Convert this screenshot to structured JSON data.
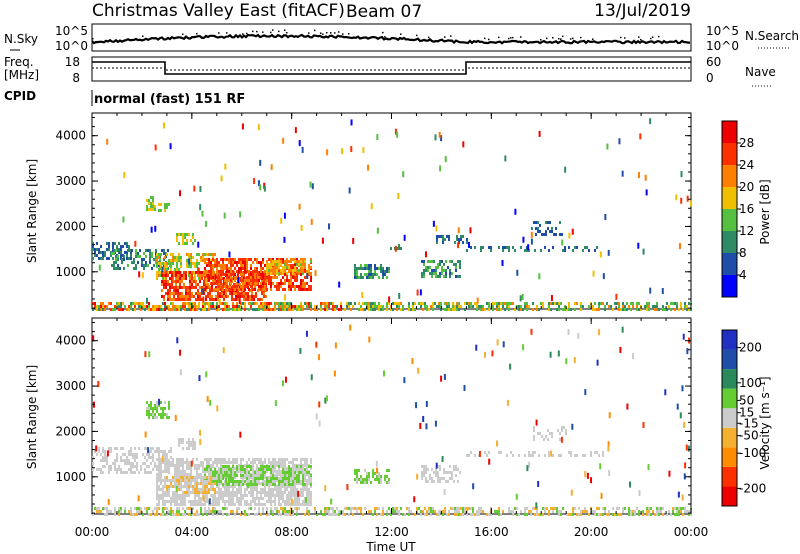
{
  "header": {
    "station": "Christmas Valley East (fitACF)",
    "beam": "Beam 07",
    "date": "13/Jul/2019"
  },
  "noise_panel": {
    "left_label": "N.Sky",
    "left_ticks": [
      "10^5",
      "10^0"
    ],
    "right_ticks": [
      "10^5",
      "10^0"
    ],
    "right_label": "N.Search"
  },
  "freq_panel": {
    "left_label_1": "Freq.",
    "left_label_2": "[MHz]",
    "left_ticks": [
      "18",
      "8"
    ],
    "right_ticks": [
      "60",
      "0"
    ],
    "right_label": "Nave"
  },
  "cpid": {
    "label": "CPID",
    "program": "normal (fast) 151 RF"
  },
  "colors": {
    "power_scale": [
      "#0000ff",
      "#1f4ea8",
      "#2f8a66",
      "#55c040",
      "#f0c000",
      "#ff7f00",
      "#ff3000",
      "#ee0000"
    ],
    "velocity_scale": [
      "#ee0000",
      "#ff3000",
      "#ff8c00",
      "#f4b030",
      "#cccccc",
      "#66cc33",
      "#2a8a5a",
      "#1f4ea8",
      "#2030c0"
    ]
  },
  "chart_data": [
    {
      "type": "heatmap",
      "name": "power",
      "ylabel": "Slant Range [km]",
      "yticks": [
        1000,
        2000,
        3000,
        4000
      ],
      "ylim": [
        180,
        4500
      ],
      "xlim": [
        0,
        24
      ],
      "colorbar": {
        "label": "Power [dB]",
        "ticks": [
          4,
          8,
          12,
          16,
          20,
          24,
          28
        ],
        "range": [
          0,
          32
        ]
      },
      "regions": [
        {
          "t0": 0.0,
          "t1": 24.0,
          "r0": 180,
          "r1": 330,
          "v0": 8,
          "v1": 22,
          "d": 0.55
        },
        {
          "t0": 0.0,
          "t1": 10.0,
          "r0": 180,
          "r1": 330,
          "v0": 18,
          "v1": 30,
          "d": 0.35
        },
        {
          "t0": 0.0,
          "t1": 1.6,
          "r0": 1300,
          "r1": 1650,
          "v0": 4,
          "v1": 12,
          "d": 0.55
        },
        {
          "t0": 0.8,
          "t1": 3.2,
          "r0": 1050,
          "r1": 1500,
          "v0": 6,
          "v1": 14,
          "d": 0.45
        },
        {
          "t0": 2.6,
          "t1": 5.0,
          "r0": 850,
          "r1": 1400,
          "v0": 12,
          "v1": 22,
          "d": 0.55
        },
        {
          "t0": 2.8,
          "t1": 7.0,
          "r0": 350,
          "r1": 1000,
          "v0": 20,
          "v1": 30,
          "d": 0.75
        },
        {
          "t0": 4.5,
          "t1": 8.8,
          "r0": 600,
          "r1": 1300,
          "v0": 20,
          "v1": 30,
          "d": 0.7
        },
        {
          "t0": 7.0,
          "t1": 8.8,
          "r0": 950,
          "r1": 1250,
          "v0": 14,
          "v1": 24,
          "d": 0.6
        },
        {
          "t0": 2.2,
          "t1": 2.6,
          "r0": 2350,
          "r1": 2650,
          "v0": 12,
          "v1": 18,
          "d": 0.5
        },
        {
          "t0": 2.6,
          "t1": 3.1,
          "r0": 2300,
          "r1": 2500,
          "v0": 12,
          "v1": 18,
          "d": 0.5
        },
        {
          "t0": 3.4,
          "t1": 4.2,
          "r0": 1600,
          "r1": 1850,
          "v0": 12,
          "v1": 20,
          "d": 0.5
        },
        {
          "t0": 10.5,
          "t1": 11.9,
          "r0": 850,
          "r1": 1150,
          "v0": 4,
          "v1": 14,
          "d": 0.55
        },
        {
          "t0": 11.8,
          "t1": 12.5,
          "r0": 1500,
          "r1": 1600,
          "v0": 8,
          "v1": 12,
          "d": 0.4
        },
        {
          "t0": 13.2,
          "t1": 14.8,
          "r0": 850,
          "r1": 1250,
          "v0": 6,
          "v1": 16,
          "d": 0.55
        },
        {
          "t0": 13.8,
          "t1": 15.2,
          "r0": 1600,
          "r1": 1800,
          "v0": 4,
          "v1": 10,
          "d": 0.4
        },
        {
          "t0": 15.0,
          "t1": 20.5,
          "r0": 1450,
          "r1": 1560,
          "v0": 6,
          "v1": 12,
          "d": 0.3
        },
        {
          "t0": 17.6,
          "t1": 19.0,
          "r0": 1800,
          "r1": 2100,
          "v0": 4,
          "v1": 10,
          "d": 0.3
        }
      ]
    },
    {
      "type": "heatmap",
      "name": "velocity",
      "ylabel": "Slant Range [km]",
      "xlabel": "Time UT",
      "yticks": [
        1000,
        2000,
        3000,
        4000
      ],
      "ylim": [
        180,
        4500
      ],
      "xlim": [
        0,
        24
      ],
      "xticks": [
        "00:00",
        "04:00",
        "08:00",
        "12:00",
        "16:00",
        "20:00",
        "00:00"
      ],
      "colorbar": {
        "label": "Velocity [m s⁻¹]",
        "ticks": [
          -200,
          -100,
          -50,
          -15,
          15,
          50,
          100,
          200
        ],
        "range": [
          -250,
          250
        ]
      },
      "regions": [
        {
          "t0": 0.0,
          "t1": 24.0,
          "r0": 180,
          "r1": 330,
          "v0": -60,
          "v1": 60,
          "d": 0.55
        },
        {
          "t0": 0.0,
          "t1": 3.2,
          "r0": 1050,
          "r1": 1650,
          "v0": -12,
          "v1": 12,
          "d": 0.5
        },
        {
          "t0": 2.6,
          "t1": 8.8,
          "r0": 400,
          "r1": 1400,
          "v0": -12,
          "v1": 12,
          "d": 0.75
        },
        {
          "t0": 4.5,
          "t1": 8.8,
          "r0": 800,
          "r1": 1250,
          "v0": 20,
          "v1": 60,
          "d": 0.55
        },
        {
          "t0": 3.0,
          "t1": 5.0,
          "r0": 600,
          "r1": 1000,
          "v0": -60,
          "v1": -20,
          "d": 0.35
        },
        {
          "t0": 2.2,
          "t1": 3.1,
          "r0": 2300,
          "r1": 2650,
          "v0": 20,
          "v1": 60,
          "d": 0.5
        },
        {
          "t0": 3.4,
          "t1": 4.2,
          "r0": 1600,
          "r1": 1850,
          "v0": -12,
          "v1": 12,
          "d": 0.5
        },
        {
          "t0": 10.5,
          "t1": 11.9,
          "r0": 850,
          "r1": 1150,
          "v0": 20,
          "v1": 60,
          "d": 0.6
        },
        {
          "t0": 13.2,
          "t1": 14.8,
          "r0": 850,
          "r1": 1250,
          "v0": -12,
          "v1": 12,
          "d": 0.5
        },
        {
          "t0": 15.0,
          "t1": 20.5,
          "r0": 1450,
          "r1": 1560,
          "v0": -12,
          "v1": 12,
          "d": 0.25
        },
        {
          "t0": 17.6,
          "t1": 19.0,
          "r0": 1800,
          "r1": 2100,
          "v0": -12,
          "v1": 12,
          "d": 0.25
        }
      ]
    }
  ],
  "x_axis": {
    "label": "Time UT",
    "ticks": [
      "00:00",
      "04:00",
      "08:00",
      "12:00",
      "16:00",
      "20:00",
      "00:00"
    ]
  }
}
